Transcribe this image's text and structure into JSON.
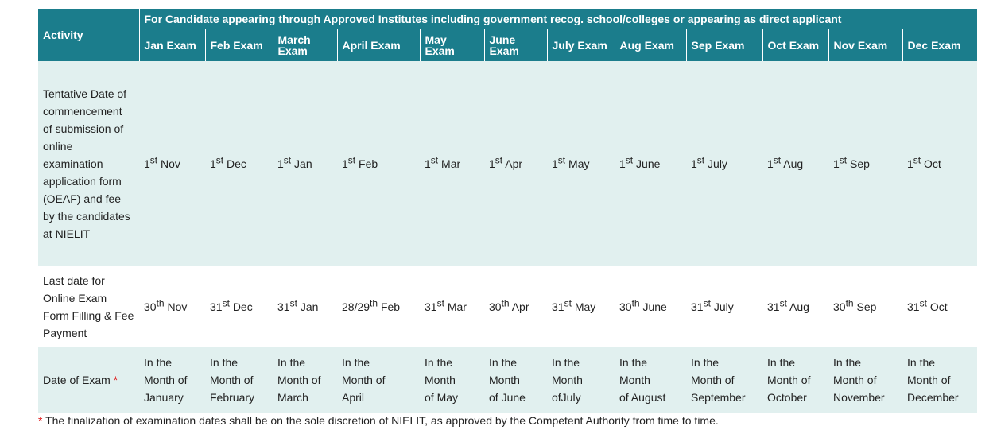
{
  "header": {
    "activity": "Activity",
    "group": "For Candidate appearing through Approved Institutes including government recog. school/colleges or appearing as direct applicant",
    "exams": [
      "Jan Exam",
      "Feb Exam",
      "March Exam",
      "April Exam",
      "May Exam",
      "June Exam",
      "July Exam",
      "Aug Exam",
      "Sep Exam",
      "Oct Exam",
      "Nov Exam",
      "Dec Exam"
    ]
  },
  "rows": [
    {
      "activity": "Tentative Date of commencement of submission of online examination application form (OEAF) and fee by the candidates at NIELIT",
      "cells": [
        {
          "num": "1",
          "sup": "st",
          "month": "Nov"
        },
        {
          "num": "1",
          "sup": "st",
          "month": "Dec"
        },
        {
          "num": "1",
          "sup": "st",
          "month": "Jan"
        },
        {
          "num": "1",
          "sup": "st",
          "month": "Feb"
        },
        {
          "num": "1",
          "sup": "st",
          "month": "Mar"
        },
        {
          "num": "1",
          "sup": "st",
          "month": "Apr"
        },
        {
          "num": "1",
          "sup": "st",
          "month": "May"
        },
        {
          "num": "1",
          "sup": "st",
          "month": "June"
        },
        {
          "num": "1",
          "sup": "st",
          "month": "July"
        },
        {
          "num": "1",
          "sup": "st",
          "month": "Aug"
        },
        {
          "num": "1",
          "sup": "st",
          "month": "Sep"
        },
        {
          "num": "1",
          "sup": "st",
          "month": "Oct"
        }
      ]
    },
    {
      "activity": "Last date for Online Exam Form Filling & Fee Payment",
      "cells": [
        {
          "num": "30",
          "sup": "th",
          "month": "Nov"
        },
        {
          "num": "31",
          "sup": "st",
          "month": "Dec"
        },
        {
          "num": "31",
          "sup": "st",
          "month": "Jan"
        },
        {
          "num": "28/29",
          "sup": "th",
          "month": "Feb"
        },
        {
          "num": "31",
          "sup": "st",
          "month": "Mar"
        },
        {
          "num": "30",
          "sup": "th",
          "month": "Apr"
        },
        {
          "num": "31",
          "sup": "st",
          "month": "May"
        },
        {
          "num": "30",
          "sup": "th",
          "month": "June"
        },
        {
          "num": "31",
          "sup": "st",
          "month": "July"
        },
        {
          "num": "31",
          "sup": "st",
          "month": "Aug"
        },
        {
          "num": "30",
          "sup": "th",
          "month": "Sep"
        },
        {
          "num": "31",
          "sup": "st",
          "month": "Oct"
        }
      ]
    },
    {
      "activity": "Date of Exam",
      "mark": "*",
      "cells": [
        {
          "lines": [
            "In the",
            "Month of",
            "January"
          ]
        },
        {
          "lines": [
            "In the",
            "Month of",
            "February"
          ]
        },
        {
          "lines": [
            "In the",
            "Month of",
            "March"
          ]
        },
        {
          "lines": [
            "In the",
            "Month of",
            "April"
          ]
        },
        {
          "lines": [
            "In the",
            "Month",
            "of May"
          ]
        },
        {
          "lines": [
            "In the",
            "Month",
            "of June"
          ]
        },
        {
          "lines": [
            "In the",
            "Month",
            "ofJuly"
          ]
        },
        {
          "lines": [
            "In the",
            "Month",
            "of August"
          ]
        },
        {
          "lines": [
            "In the",
            "Month of",
            "September"
          ]
        },
        {
          "lines": [
            "In the",
            "Month of",
            "October"
          ]
        },
        {
          "lines": [
            "In the",
            "Month of",
            "November"
          ]
        },
        {
          "lines": [
            "In the",
            "Month of",
            "December"
          ]
        }
      ]
    }
  ],
  "footnote": {
    "mark": "*",
    "text": "The finalization of examination dates shall be on the sole discretion of NIELIT, as approved by the Competent Authority from time to time."
  }
}
